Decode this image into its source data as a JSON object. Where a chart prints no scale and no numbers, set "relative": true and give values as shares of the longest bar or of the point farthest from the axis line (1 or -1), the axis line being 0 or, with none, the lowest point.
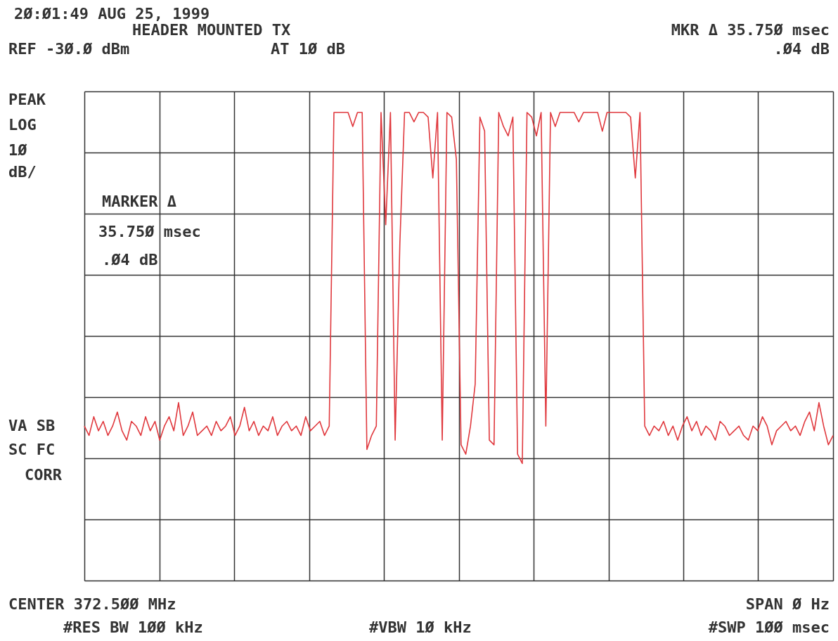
{
  "chart_data": {
    "type": "line",
    "title": "HEADER MOUNTED TX",
    "relative": true,
    "grid": true,
    "line_style": "solid",
    "categories": [
      null,
      null,
      null,
      null,
      null,
      null,
      null,
      null,
      null,
      null,
      null,
      null,
      null,
      null,
      null,
      null,
      null,
      null,
      null,
      null,
      null,
      null,
      null,
      null,
      null,
      null,
      null,
      null,
      null,
      null,
      null,
      null,
      null,
      null,
      null,
      null,
      null,
      null,
      null,
      null,
      null,
      null,
      null,
      null,
      null,
      null,
      null,
      null,
      null,
      null,
      null,
      null,
      null,
      null,
      null,
      null,
      null,
      null,
      null,
      null,
      null,
      null,
      null,
      null,
      null,
      null,
      null,
      null,
      null,
      null,
      null,
      null,
      null,
      null,
      null,
      null,
      null,
      null,
      null,
      null,
      null,
      null,
      null,
      null,
      null,
      null,
      null,
      null,
      null,
      null,
      null,
      null,
      null,
      null,
      null,
      null,
      null,
      null,
      null,
      null,
      null,
      null,
      null,
      null,
      null,
      null,
      null,
      null,
      null,
      null,
      null,
      null,
      null,
      null,
      null,
      null,
      null,
      null,
      null,
      null,
      null,
      null,
      null,
      null,
      null,
      null,
      null,
      null,
      null,
      null,
      null,
      null,
      null,
      null,
      null,
      null,
      null,
      null,
      null,
      null,
      null,
      null,
      null,
      null,
      null,
      null,
      null,
      null,
      null,
      null,
      null,
      null,
      null,
      null,
      null,
      null,
      null,
      null,
      null,
      null
    ],
    "series": [
      {
        "color": "#e0393e",
        "values": [
          0.33,
          0.31,
          0.35,
          0.32,
          0.34,
          0.31,
          0.33,
          0.36,
          0.32,
          0.3,
          0.34,
          0.33,
          0.31,
          0.35,
          0.32,
          0.34,
          0.3,
          0.33,
          0.35,
          0.32,
          0.38,
          0.31,
          0.33,
          0.36,
          0.31,
          0.32,
          0.33,
          0.31,
          0.34,
          0.32,
          0.33,
          0.35,
          0.31,
          0.33,
          0.37,
          0.32,
          0.34,
          0.31,
          0.33,
          0.32,
          0.35,
          0.31,
          0.33,
          0.34,
          0.32,
          0.33,
          0.31,
          0.35,
          0.32,
          0.33,
          0.34,
          0.31,
          0.33,
          1.0,
          1.0,
          1.0,
          1.0,
          0.97,
          1.0,
          1.0,
          0.28,
          0.31,
          0.33,
          1.0,
          0.76,
          1.0,
          0.3,
          0.72,
          1.0,
          1.0,
          0.98,
          1.0,
          1.0,
          0.99,
          0.86,
          1.0,
          0.3,
          1.0,
          0.99,
          0.9,
          0.29,
          0.27,
          0.33,
          0.42,
          0.99,
          0.96,
          0.3,
          0.29,
          1.0,
          0.97,
          0.95,
          0.99,
          0.27,
          0.25,
          1.0,
          0.99,
          0.95,
          1.0,
          0.33,
          1.0,
          0.97,
          1.0,
          1.0,
          1.0,
          1.0,
          0.98,
          1.0,
          1.0,
          1.0,
          1.0,
          0.96,
          1.0,
          1.0,
          1.0,
          1.0,
          1.0,
          0.99,
          0.86,
          1.0,
          0.33,
          0.31,
          0.33,
          0.32,
          0.34,
          0.31,
          0.33,
          0.3,
          0.33,
          0.35,
          0.32,
          0.34,
          0.31,
          0.33,
          0.32,
          0.3,
          0.34,
          0.33,
          0.31,
          0.32,
          0.33,
          0.31,
          0.3,
          0.33,
          0.32,
          0.35,
          0.33,
          0.29,
          0.32,
          0.33,
          0.34,
          0.32,
          0.33,
          0.31,
          0.34,
          0.36,
          0.32,
          0.38,
          0.33,
          0.29,
          0.31
        ]
      }
    ],
    "annotations": [
      "2Ø:Ø1:49 AUG 25, 1999",
      "MKR Δ 35.75Ø msec",
      "REF -3Ø.Ø dBm",
      "AT 1Ø dB",
      ".Ø4 dB",
      "PEAK",
      "LOG",
      "1Ø",
      "dB/",
      "MARKER Δ",
      "35.75Ø msec",
      ".Ø4 dB",
      "VA SB",
      "SC FC",
      "CORR",
      "CENTER 372.5ØØ MHz",
      "SPAN Ø Hz",
      "#RES BW 1ØØ kHz",
      "#VBW 1Ø kHz",
      "#SWP 1ØØ msec"
    ]
  }
}
